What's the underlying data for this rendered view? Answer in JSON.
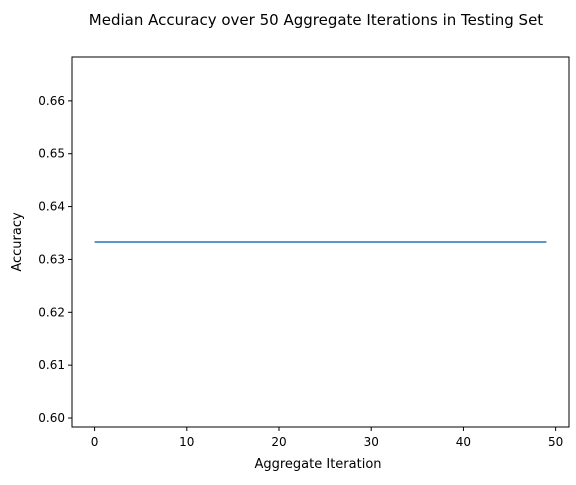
{
  "chart_data": {
    "type": "line",
    "title": "Median Accuracy over 50 Aggregate Iterations in Testing Set",
    "xlabel": "Aggregate Iteration",
    "ylabel": "Accuracy",
    "xlim": [
      -2.45,
      51.45
    ],
    "ylim": [
      0.5983,
      0.6683
    ],
    "x_ticks": [
      0,
      10,
      20,
      30,
      40,
      50
    ],
    "x_tick_labels": [
      "0",
      "10",
      "20",
      "30",
      "40",
      "50"
    ],
    "y_ticks": [
      0.6,
      0.61,
      0.62,
      0.63,
      0.64,
      0.65,
      0.66
    ],
    "y_tick_labels": [
      "0.60",
      "0.61",
      "0.62",
      "0.63",
      "0.64",
      "0.65",
      "0.66"
    ],
    "grid": false,
    "series": [
      {
        "color": "#1f77b4",
        "x": [
          0,
          1,
          2,
          3,
          4,
          5,
          6,
          7,
          8,
          9,
          10,
          11,
          12,
          13,
          14,
          15,
          16,
          17,
          18,
          19,
          20,
          21,
          22,
          23,
          24,
          25,
          26,
          27,
          28,
          29,
          30,
          31,
          32,
          33,
          34,
          35,
          36,
          37,
          38,
          39,
          40,
          41,
          42,
          43,
          44,
          45,
          46,
          47,
          48,
          49
        ],
        "values": [
          0.6333,
          0.6333,
          0.6333,
          0.6333,
          0.6333,
          0.6333,
          0.6333,
          0.6333,
          0.6333,
          0.6333,
          0.6333,
          0.6333,
          0.6333,
          0.6333,
          0.6333,
          0.6333,
          0.6333,
          0.6333,
          0.6333,
          0.6333,
          0.6333,
          0.6333,
          0.6333,
          0.6333,
          0.6333,
          0.6333,
          0.6333,
          0.6333,
          0.6333,
          0.6333,
          0.6333,
          0.6333,
          0.6333,
          0.6333,
          0.6333,
          0.6333,
          0.6333,
          0.6333,
          0.6333,
          0.6333,
          0.6333,
          0.6333,
          0.6333,
          0.6333,
          0.6333,
          0.6333,
          0.6333,
          0.6333,
          0.6333,
          0.6333
        ]
      }
    ]
  }
}
